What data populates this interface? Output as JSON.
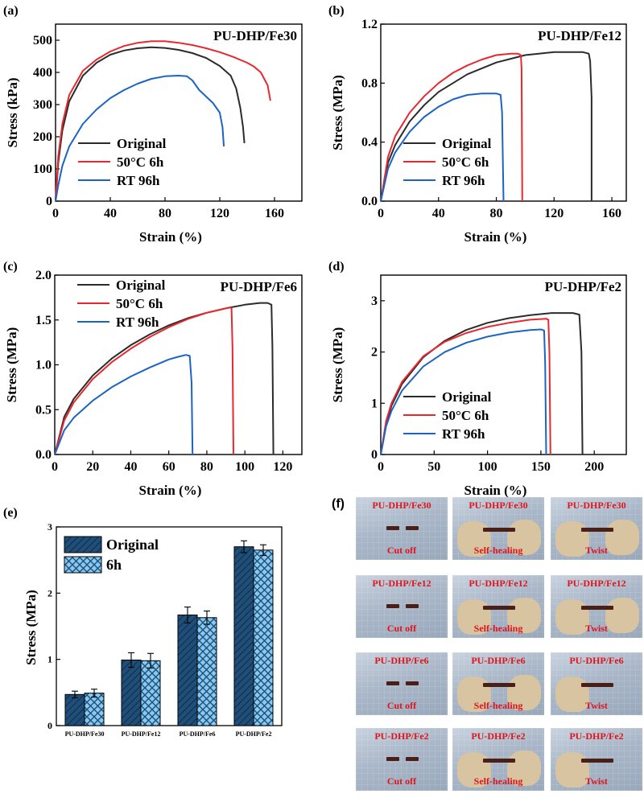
{
  "chart_data": [
    {
      "panel": "(a)",
      "type": "line",
      "title": "PU-DHP/Fe30",
      "xlabel": "Strain (%)",
      "ylabel": "Stress (kPa)",
      "xlim": [
        0,
        180
      ],
      "ylim": [
        0,
        550
      ],
      "xticks": [
        0,
        40,
        80,
        120,
        160
      ],
      "yticks": [
        0,
        100,
        200,
        300,
        400,
        500
      ],
      "legend": "bottom-left",
      "series": [
        {
          "name": "Original",
          "color": "#2b2b2b",
          "x": [
            0,
            2,
            5,
            10,
            20,
            30,
            40,
            50,
            60,
            70,
            80,
            90,
            100,
            110,
            120,
            128,
            132,
            135,
            137,
            138
          ],
          "y": [
            0,
            120,
            220,
            310,
            390,
            430,
            455,
            468,
            475,
            478,
            476,
            470,
            460,
            445,
            420,
            390,
            350,
            290,
            230,
            180
          ]
        },
        {
          "name": "50°C 6h",
          "color": "#e8282f",
          "x": [
            0,
            2,
            5,
            10,
            20,
            30,
            40,
            50,
            60,
            70,
            80,
            90,
            100,
            110,
            120,
            130,
            140,
            145,
            150,
            155,
            157
          ],
          "y": [
            0,
            140,
            240,
            330,
            405,
            440,
            465,
            482,
            492,
            497,
            497,
            492,
            485,
            475,
            463,
            448,
            430,
            418,
            400,
            360,
            312
          ]
        },
        {
          "name": "RT 96h",
          "color": "#1b64c4",
          "x": [
            0,
            2,
            5,
            10,
            20,
            30,
            40,
            50,
            60,
            70,
            80,
            90,
            96,
            100,
            105,
            110,
            115,
            120,
            122,
            123
          ],
          "y": [
            0,
            50,
            110,
            170,
            240,
            285,
            320,
            345,
            365,
            380,
            388,
            390,
            388,
            375,
            345,
            325,
            305,
            275,
            230,
            170
          ]
        }
      ]
    },
    {
      "panel": "(b)",
      "type": "line",
      "title": "PU-DHP/Fe12",
      "xlabel": "Strain (%)",
      "ylabel": "Stress (MPa)",
      "xlim": [
        0,
        170
      ],
      "ylim": [
        0,
        1.2
      ],
      "xticks": [
        0,
        40,
        80,
        120,
        160
      ],
      "yticks": [
        0.0,
        0.4,
        0.8,
        1.2
      ],
      "legend": "bottom-left",
      "series": [
        {
          "name": "Original",
          "color": "#2b2b2b",
          "x": [
            0,
            5,
            10,
            20,
            30,
            40,
            60,
            80,
            100,
            120,
            140,
            144,
            145,
            146,
            146
          ],
          "y": [
            0,
            0.26,
            0.38,
            0.54,
            0.65,
            0.74,
            0.86,
            0.94,
            0.99,
            1.01,
            1.01,
            1.0,
            0.95,
            0.7,
            0
          ]
        },
        {
          "name": "50°C 6h",
          "color": "#e8282f",
          "x": [
            0,
            5,
            10,
            20,
            30,
            40,
            50,
            60,
            70,
            80,
            90,
            95,
            97,
            97.5,
            98
          ],
          "y": [
            0,
            0.3,
            0.44,
            0.6,
            0.71,
            0.8,
            0.87,
            0.92,
            0.96,
            0.99,
            1.0,
            1.0,
            0.99,
            0.9,
            0
          ]
        },
        {
          "name": "RT 96h",
          "color": "#1b64c4",
          "x": [
            0,
            5,
            10,
            20,
            30,
            40,
            50,
            60,
            70,
            80,
            83,
            84,
            85
          ],
          "y": [
            0,
            0.22,
            0.33,
            0.47,
            0.57,
            0.64,
            0.69,
            0.72,
            0.73,
            0.73,
            0.72,
            0.6,
            0
          ]
        }
      ]
    },
    {
      "panel": "(c)",
      "type": "line",
      "title": "PU-DHP/Fe6",
      "xlabel": "Strain (%)",
      "ylabel": "Stress (MPa)",
      "xlim": [
        0,
        130
      ],
      "ylim": [
        0,
        2.0
      ],
      "xticks": [
        0,
        20,
        40,
        60,
        80,
        100,
        120
      ],
      "yticks": [
        0.0,
        0.5,
        1.0,
        1.5,
        2.0
      ],
      "legend": "top-left",
      "series": [
        {
          "name": "Original",
          "color": "#2b2b2b",
          "x": [
            0,
            5,
            10,
            20,
            30,
            40,
            50,
            60,
            70,
            80,
            90,
            100,
            108,
            112,
            114,
            114.5,
            115
          ],
          "y": [
            0,
            0.42,
            0.62,
            0.88,
            1.07,
            1.22,
            1.34,
            1.44,
            1.52,
            1.58,
            1.63,
            1.67,
            1.69,
            1.69,
            1.67,
            1.2,
            0
          ]
        },
        {
          "name": "50°C 6h",
          "color": "#e8282f",
          "x": [
            0,
            5,
            10,
            20,
            30,
            40,
            50,
            60,
            70,
            80,
            88,
            92,
            93,
            93.5,
            94
          ],
          "y": [
            0,
            0.38,
            0.58,
            0.84,
            1.03,
            1.18,
            1.31,
            1.42,
            1.51,
            1.58,
            1.62,
            1.64,
            1.63,
            1.2,
            0
          ]
        },
        {
          "name": "RT 96h",
          "color": "#1b64c4",
          "x": [
            0,
            5,
            10,
            20,
            30,
            40,
            50,
            60,
            65,
            69,
            71,
            72,
            72.5
          ],
          "y": [
            0,
            0.27,
            0.41,
            0.6,
            0.75,
            0.87,
            0.97,
            1.06,
            1.09,
            1.11,
            1.1,
            0.8,
            0
          ]
        }
      ]
    },
    {
      "panel": "(d)",
      "type": "line",
      "title": "PU-DHP/Fe2",
      "xlabel": "Strain (%)",
      "ylabel": "Stress (MPa)",
      "xlim": [
        0,
        230
      ],
      "ylim": [
        0,
        3.5
      ],
      "xticks": [
        0,
        50,
        100,
        150,
        200
      ],
      "yticks": [
        0,
        1,
        2,
        3
      ],
      "legend": "bottom-left",
      "series": [
        {
          "name": "Original",
          "color": "#2b2b2b",
          "x": [
            0,
            5,
            10,
            20,
            40,
            60,
            80,
            100,
            120,
            140,
            160,
            180,
            186,
            188,
            189
          ],
          "y": [
            0,
            0.6,
            0.95,
            1.38,
            1.9,
            2.22,
            2.43,
            2.57,
            2.66,
            2.72,
            2.76,
            2.76,
            2.73,
            2.0,
            0
          ]
        },
        {
          "name": "50°C 6h",
          "color": "#e8282f",
          "x": [
            0,
            5,
            10,
            20,
            40,
            60,
            80,
            100,
            120,
            140,
            155,
            157,
            158,
            159
          ],
          "y": [
            0,
            0.65,
            1.0,
            1.42,
            1.92,
            2.2,
            2.37,
            2.49,
            2.57,
            2.63,
            2.65,
            2.63,
            2.0,
            0
          ]
        },
        {
          "name": "RT 96h",
          "color": "#1b64c4",
          "x": [
            0,
            5,
            10,
            20,
            40,
            60,
            80,
            100,
            120,
            140,
            150,
            153,
            154,
            155
          ],
          "y": [
            0,
            0.55,
            0.85,
            1.25,
            1.72,
            2.0,
            2.18,
            2.3,
            2.38,
            2.43,
            2.44,
            2.42,
            1.8,
            0
          ]
        }
      ]
    },
    {
      "panel": "(e)",
      "type": "bar",
      "ylabel": "Stress (MPa)",
      "ylim": [
        0,
        3
      ],
      "yticks": [
        0,
        1,
        2,
        3
      ],
      "categories": [
        "PU-DHP/Fe30",
        "PU-DHP/Fe12",
        "PU-DHP/Fe6",
        "PU-DHP/Fe2"
      ],
      "legend": "top-left",
      "series": [
        {
          "name": "Original",
          "color": "#1f4e79",
          "values": [
            0.47,
            0.99,
            1.67,
            2.7
          ],
          "errors": [
            0.05,
            0.11,
            0.12,
            0.09
          ]
        },
        {
          "name": "6h",
          "color": "#88c9f0",
          "values": [
            0.49,
            0.98,
            1.63,
            2.65
          ],
          "errors": [
            0.06,
            0.11,
            0.1,
            0.08
          ]
        }
      ]
    }
  ],
  "photo_panel": {
    "label": "(f)",
    "rows": [
      {
        "sample": "PU-DHP/Fe30",
        "captions": [
          "Cut off",
          "Self-healing",
          "Twist"
        ]
      },
      {
        "sample": "PU-DHP/Fe12",
        "captions": [
          "Cut off",
          "Self-healing",
          "Twist"
        ]
      },
      {
        "sample": "PU-DHP/Fe6",
        "captions": [
          "Cut off",
          "Self-healing",
          "Twist"
        ]
      },
      {
        "sample": "PU-DHP/Fe2",
        "captions": [
          "Cut off",
          "Self-healing",
          "Twist"
        ]
      }
    ]
  }
}
